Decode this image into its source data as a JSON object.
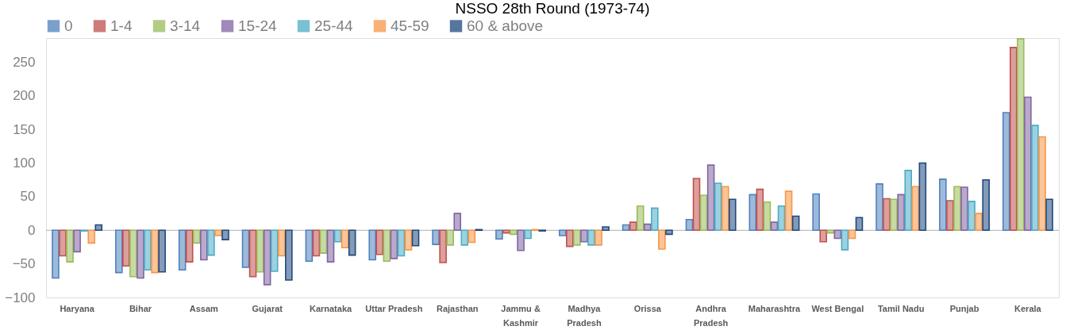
{
  "chart_data": {
    "type": "bar",
    "title": "NSSO 28th Round (1973-74)",
    "categories": [
      "Haryana",
      "Bihar",
      "Assam",
      "Gujarat",
      "Karnataka",
      "Uttar Pradesh",
      "Rajasthan",
      "Jammu & Kashmir",
      "Madhya Pradesh",
      "Orissa",
      "Andhra Pradesh",
      "Maharashtra",
      "West Bengal",
      "Tamil Nadu",
      "Punjab",
      "Kerala"
    ],
    "series": [
      {
        "name": "0",
        "color": "#4f81bd",
        "values": [
          -71,
          -63,
          -59,
          -55,
          -46,
          -44,
          -21,
          -13,
          -8,
          8,
          16,
          53,
          54,
          69,
          76,
          175
        ]
      },
      {
        "name": "1-4",
        "color": "#c0504d",
        "values": [
          -38,
          -53,
          -47,
          -69,
          -38,
          -36,
          -48,
          -4,
          -24,
          12,
          77,
          61,
          -17,
          47,
          44,
          272
        ]
      },
      {
        "name": "3-14",
        "color": "#9bbb59",
        "values": [
          -47,
          -69,
          -19,
          -62,
          -34,
          -46,
          -22,
          -6,
          -22,
          36,
          52,
          42,
          -4,
          46,
          65,
          285
        ]
      },
      {
        "name": "15-24",
        "color": "#8064a2",
        "values": [
          -32,
          -71,
          -44,
          -81,
          -47,
          -42,
          25,
          -30,
          -17,
          9,
          97,
          12,
          -12,
          53,
          64,
          198
        ]
      },
      {
        "name": "25-44",
        "color": "#4bacc6",
        "values": [
          -1,
          -59,
          -37,
          -61,
          -17,
          -38,
          -22,
          -12,
          -22,
          33,
          70,
          36,
          -29,
          89,
          43,
          156
        ]
      },
      {
        "name": "45-59",
        "color": "#f79646",
        "values": [
          -19,
          -63,
          -8,
          -38,
          -26,
          -29,
          -18,
          1,
          -22,
          -28,
          65,
          58,
          -12,
          65,
          25,
          139
        ]
      },
      {
        "name": "60 & above",
        "color": "#1f497d",
        "values": [
          8,
          -62,
          -14,
          -74,
          -37,
          -23,
          1,
          -1,
          5,
          -6,
          46,
          21,
          19,
          100,
          75,
          46
        ]
      }
    ],
    "ylim": [
      -100,
      286
    ],
    "yticks": [
      -100,
      -50,
      0,
      50,
      100,
      150,
      200,
      250
    ],
    "ref_lines": [
      {
        "axis": "y",
        "value": 0,
        "color": "#bfbfbf"
      }
    ],
    "grid": false,
    "legend": "top"
  }
}
